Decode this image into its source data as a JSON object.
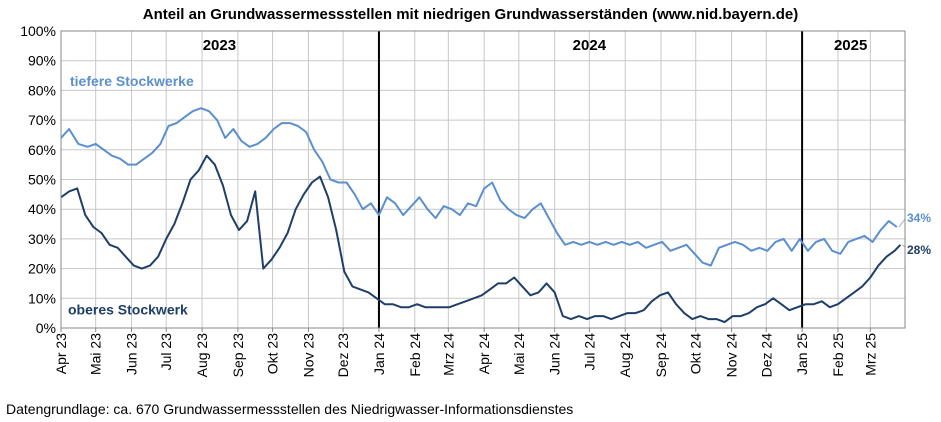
{
  "chart_data": {
    "type": "line",
    "title": "Anteil an Grundwassermessstellen mit niedrigen Grundwasserständen (www.nid.bayern.de)",
    "source": "Datengrundlage:  ca. 670 Grundwassermessstellen  des Niedrigwasser-Informationsdienstes",
    "ylim": [
      0,
      100
    ],
    "y_ticks": [
      "0%",
      "10%",
      "20%",
      "30%",
      "40%",
      "50%",
      "60%",
      "70%",
      "80%",
      "90%",
      "100%"
    ],
    "x_range": [
      "2023-04-01",
      "2025-03-31"
    ],
    "x_ticks": [
      {
        "date": "2023-04-01",
        "label": "Apr 23"
      },
      {
        "date": "2023-05-01",
        "label": "Mai 23"
      },
      {
        "date": "2023-06-01",
        "label": "Jun 23"
      },
      {
        "date": "2023-07-01",
        "label": "Jul 23"
      },
      {
        "date": "2023-08-01",
        "label": "Aug 23"
      },
      {
        "date": "2023-09-01",
        "label": "Sep 23"
      },
      {
        "date": "2023-10-01",
        "label": "Okt 23"
      },
      {
        "date": "2023-11-01",
        "label": "Nov 23"
      },
      {
        "date": "2023-12-01",
        "label": "Dez 23"
      },
      {
        "date": "2024-01-01",
        "label": "Jan 24"
      },
      {
        "date": "2024-02-01",
        "label": "Feb 24"
      },
      {
        "date": "2024-03-01",
        "label": "Mrz 24"
      },
      {
        "date": "2024-04-01",
        "label": "Apr 24"
      },
      {
        "date": "2024-05-01",
        "label": "Mai 24"
      },
      {
        "date": "2024-06-01",
        "label": "Jun 24"
      },
      {
        "date": "2024-07-01",
        "label": "Jul 24"
      },
      {
        "date": "2024-08-01",
        "label": "Aug 24"
      },
      {
        "date": "2024-09-01",
        "label": "Sep 24"
      },
      {
        "date": "2024-10-01",
        "label": "Okt 24"
      },
      {
        "date": "2024-11-01",
        "label": "Nov 24"
      },
      {
        "date": "2024-12-01",
        "label": "Dez 24"
      },
      {
        "date": "2025-01-01",
        "label": "Jan 25"
      },
      {
        "date": "2025-02-01",
        "label": "Feb 25"
      },
      {
        "date": "2025-03-01",
        "label": "Mrz 25"
      }
    ],
    "year_labels": [
      {
        "text": "2023",
        "date": "2023-08-16"
      },
      {
        "text": "2024",
        "date": "2024-07-01"
      },
      {
        "text": "2025",
        "date": "2025-02-12"
      }
    ],
    "year_dividers": [
      "2024-01-01",
      "2025-01-01"
    ],
    "grid": true,
    "series": [
      {
        "name": "tiefere Stockwerke",
        "color": "#5b8fd0",
        "end_label": "34%",
        "points": [
          [
            "2023-04-01",
            64
          ],
          [
            "2023-04-08",
            67
          ],
          [
            "2023-04-16",
            62
          ],
          [
            "2023-04-24",
            61
          ],
          [
            "2023-05-01",
            62
          ],
          [
            "2023-05-08",
            60
          ],
          [
            "2023-05-15",
            58
          ],
          [
            "2023-05-22",
            57
          ],
          [
            "2023-05-29",
            55
          ],
          [
            "2023-06-05",
            55
          ],
          [
            "2023-06-12",
            57
          ],
          [
            "2023-06-19",
            59
          ],
          [
            "2023-06-26",
            62
          ],
          [
            "2023-07-03",
            68
          ],
          [
            "2023-07-10",
            69
          ],
          [
            "2023-07-17",
            71
          ],
          [
            "2023-07-24",
            73
          ],
          [
            "2023-07-31",
            74
          ],
          [
            "2023-08-07",
            73
          ],
          [
            "2023-08-14",
            70
          ],
          [
            "2023-08-21",
            64
          ],
          [
            "2023-08-28",
            67
          ],
          [
            "2023-09-04",
            63
          ],
          [
            "2023-09-11",
            61
          ],
          [
            "2023-09-18",
            62
          ],
          [
            "2023-09-25",
            64
          ],
          [
            "2023-10-02",
            67
          ],
          [
            "2023-10-09",
            69
          ],
          [
            "2023-10-16",
            69
          ],
          [
            "2023-10-23",
            68
          ],
          [
            "2023-10-30",
            66
          ],
          [
            "2023-11-06",
            60
          ],
          [
            "2023-11-13",
            56
          ],
          [
            "2023-11-20",
            50
          ],
          [
            "2023-11-27",
            49
          ],
          [
            "2023-12-04",
            49
          ],
          [
            "2023-12-11",
            45
          ],
          [
            "2023-12-18",
            40
          ],
          [
            "2023-12-25",
            42
          ],
          [
            "2024-01-01",
            38
          ],
          [
            "2024-01-08",
            44
          ],
          [
            "2024-01-15",
            42
          ],
          [
            "2024-01-22",
            38
          ],
          [
            "2024-01-29",
            41
          ],
          [
            "2024-02-05",
            44
          ],
          [
            "2024-02-12",
            40
          ],
          [
            "2024-02-19",
            37
          ],
          [
            "2024-02-26",
            41
          ],
          [
            "2024-03-04",
            40
          ],
          [
            "2024-03-11",
            38
          ],
          [
            "2024-03-18",
            42
          ],
          [
            "2024-03-25",
            41
          ],
          [
            "2024-04-01",
            47
          ],
          [
            "2024-04-08",
            49
          ],
          [
            "2024-04-15",
            43
          ],
          [
            "2024-04-22",
            40
          ],
          [
            "2024-04-29",
            38
          ],
          [
            "2024-05-06",
            37
          ],
          [
            "2024-05-13",
            40
          ],
          [
            "2024-05-20",
            42
          ],
          [
            "2024-05-27",
            37
          ],
          [
            "2024-06-03",
            32
          ],
          [
            "2024-06-10",
            28
          ],
          [
            "2024-06-17",
            29
          ],
          [
            "2024-06-24",
            28
          ],
          [
            "2024-07-01",
            29
          ],
          [
            "2024-07-08",
            28
          ],
          [
            "2024-07-15",
            29
          ],
          [
            "2024-07-22",
            28
          ],
          [
            "2024-07-29",
            29
          ],
          [
            "2024-08-05",
            28
          ],
          [
            "2024-08-12",
            29
          ],
          [
            "2024-08-19",
            27
          ],
          [
            "2024-08-26",
            28
          ],
          [
            "2024-09-02",
            29
          ],
          [
            "2024-09-09",
            26
          ],
          [
            "2024-09-16",
            27
          ],
          [
            "2024-09-23",
            28
          ],
          [
            "2024-09-30",
            25
          ],
          [
            "2024-10-07",
            22
          ],
          [
            "2024-10-14",
            21
          ],
          [
            "2024-10-21",
            27
          ],
          [
            "2024-10-28",
            28
          ],
          [
            "2024-11-04",
            29
          ],
          [
            "2024-11-11",
            28
          ],
          [
            "2024-11-18",
            26
          ],
          [
            "2024-11-25",
            27
          ],
          [
            "2024-12-02",
            26
          ],
          [
            "2024-12-09",
            29
          ],
          [
            "2024-12-16",
            30
          ],
          [
            "2024-12-23",
            26
          ],
          [
            "2024-12-30",
            30
          ],
          [
            "2025-01-06",
            26
          ],
          [
            "2025-01-13",
            29
          ],
          [
            "2025-01-20",
            30
          ],
          [
            "2025-01-27",
            26
          ],
          [
            "2025-02-03",
            25
          ],
          [
            "2025-02-10",
            29
          ],
          [
            "2025-02-17",
            30
          ],
          [
            "2025-02-24",
            31
          ],
          [
            "2025-03-03",
            29
          ],
          [
            "2025-03-10",
            33
          ],
          [
            "2025-03-17",
            36
          ],
          [
            "2025-03-24",
            34
          ]
        ]
      },
      {
        "name": "oberes Stockwerk",
        "color": "#1f3f6a",
        "end_label": "28%",
        "points": [
          [
            "2023-04-01",
            44
          ],
          [
            "2023-04-08",
            46
          ],
          [
            "2023-04-15",
            47
          ],
          [
            "2023-04-22",
            38
          ],
          [
            "2023-04-29",
            34
          ],
          [
            "2023-05-06",
            32
          ],
          [
            "2023-05-13",
            28
          ],
          [
            "2023-05-20",
            27
          ],
          [
            "2023-05-27",
            24
          ],
          [
            "2023-06-03",
            21
          ],
          [
            "2023-06-10",
            20
          ],
          [
            "2023-06-17",
            21
          ],
          [
            "2023-06-24",
            24
          ],
          [
            "2023-07-01",
            30
          ],
          [
            "2023-07-08",
            35
          ],
          [
            "2023-07-15",
            42
          ],
          [
            "2023-07-22",
            50
          ],
          [
            "2023-07-29",
            53
          ],
          [
            "2023-08-05",
            58
          ],
          [
            "2023-08-12",
            55
          ],
          [
            "2023-08-19",
            48
          ],
          [
            "2023-08-26",
            38
          ],
          [
            "2023-09-02",
            33
          ],
          [
            "2023-09-09",
            36
          ],
          [
            "2023-09-16",
            46
          ],
          [
            "2023-09-23",
            20
          ],
          [
            "2023-09-30",
            23
          ],
          [
            "2023-10-07",
            27
          ],
          [
            "2023-10-14",
            32
          ],
          [
            "2023-10-21",
            40
          ],
          [
            "2023-10-28",
            45
          ],
          [
            "2023-11-04",
            49
          ],
          [
            "2023-11-11",
            51
          ],
          [
            "2023-11-18",
            44
          ],
          [
            "2023-11-25",
            33
          ],
          [
            "2023-12-02",
            19
          ],
          [
            "2023-12-09",
            14
          ],
          [
            "2023-12-16",
            13
          ],
          [
            "2023-12-23",
            12
          ],
          [
            "2023-12-30",
            10
          ],
          [
            "2024-01-06",
            8
          ],
          [
            "2024-01-13",
            8
          ],
          [
            "2024-01-20",
            7
          ],
          [
            "2024-01-27",
            7
          ],
          [
            "2024-02-03",
            8
          ],
          [
            "2024-02-10",
            7
          ],
          [
            "2024-02-17",
            7
          ],
          [
            "2024-02-24",
            7
          ],
          [
            "2024-03-02",
            7
          ],
          [
            "2024-03-09",
            8
          ],
          [
            "2024-03-16",
            9
          ],
          [
            "2024-03-23",
            10
          ],
          [
            "2024-03-30",
            11
          ],
          [
            "2024-04-06",
            13
          ],
          [
            "2024-04-13",
            15
          ],
          [
            "2024-04-20",
            15
          ],
          [
            "2024-04-27",
            17
          ],
          [
            "2024-05-04",
            14
          ],
          [
            "2024-05-11",
            11
          ],
          [
            "2024-05-18",
            12
          ],
          [
            "2024-05-25",
            15
          ],
          [
            "2024-06-01",
            12
          ],
          [
            "2024-06-08",
            4
          ],
          [
            "2024-06-15",
            3
          ],
          [
            "2024-06-22",
            4
          ],
          [
            "2024-06-29",
            3
          ],
          [
            "2024-07-06",
            4
          ],
          [
            "2024-07-13",
            4
          ],
          [
            "2024-07-20",
            3
          ],
          [
            "2024-07-27",
            4
          ],
          [
            "2024-08-03",
            5
          ],
          [
            "2024-08-10",
            5
          ],
          [
            "2024-08-17",
            6
          ],
          [
            "2024-08-24",
            9
          ],
          [
            "2024-08-31",
            11
          ],
          [
            "2024-09-07",
            12
          ],
          [
            "2024-09-14",
            8
          ],
          [
            "2024-09-21",
            5
          ],
          [
            "2024-09-28",
            3
          ],
          [
            "2024-10-05",
            4
          ],
          [
            "2024-10-12",
            3
          ],
          [
            "2024-10-19",
            3
          ],
          [
            "2024-10-26",
            2
          ],
          [
            "2024-11-02",
            4
          ],
          [
            "2024-11-09",
            4
          ],
          [
            "2024-11-16",
            5
          ],
          [
            "2024-11-23",
            7
          ],
          [
            "2024-11-30",
            8
          ],
          [
            "2024-12-07",
            10
          ],
          [
            "2024-12-14",
            8
          ],
          [
            "2024-12-21",
            6
          ],
          [
            "2024-12-28",
            7
          ],
          [
            "2025-01-04",
            8
          ],
          [
            "2025-01-11",
            8
          ],
          [
            "2025-01-18",
            9
          ],
          [
            "2025-01-25",
            7
          ],
          [
            "2025-02-01",
            8
          ],
          [
            "2025-02-08",
            10
          ],
          [
            "2025-02-15",
            12
          ],
          [
            "2025-02-22",
            14
          ],
          [
            "2025-03-01",
            17
          ],
          [
            "2025-03-08",
            21
          ],
          [
            "2025-03-15",
            24
          ],
          [
            "2025-03-22",
            26
          ],
          [
            "2025-03-27",
            28
          ]
        ]
      }
    ]
  }
}
